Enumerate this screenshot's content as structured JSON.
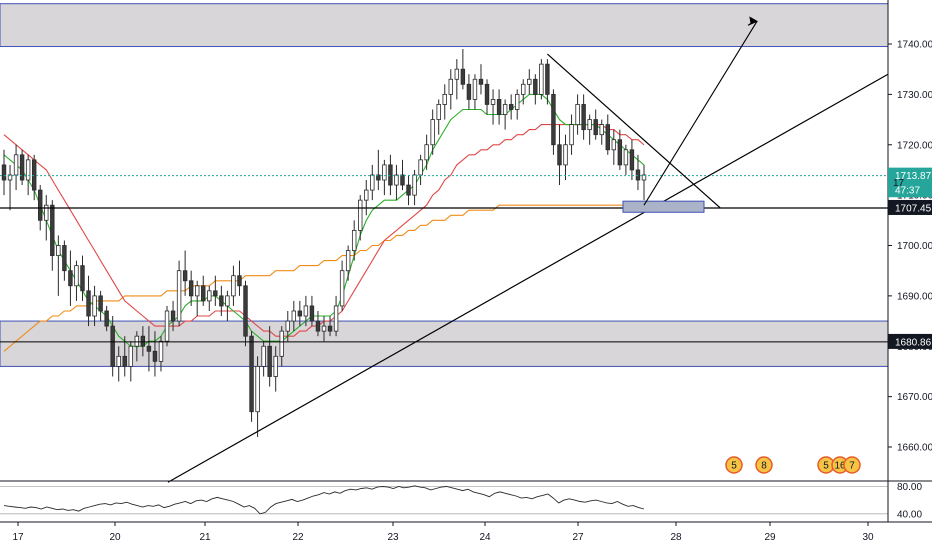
{
  "chart_data": {
    "type": "candlestick",
    "title": "",
    "price_axis": {
      "range": [
        1652,
        1748
      ],
      "ticks": [
        "1740.00",
        "1730.00",
        "1720.00",
        "1710.00",
        "1700.00",
        "1690.00",
        "1680.00",
        "1670.00",
        "1660.00"
      ]
    },
    "time_axis": {
      "ticks": [
        "17",
        "20",
        "21",
        "22",
        "23",
        "24",
        "27",
        "28",
        "29",
        "30"
      ]
    },
    "price_labels": {
      "last_price": "1713.87",
      "countdown": "47:37",
      "partial_label": "17",
      "support_line": "1707.45",
      "zone_mid": "1680.86"
    },
    "resistance_zone": [
      1739.5,
      1748
    ],
    "support_zone": [
      1676,
      1685
    ],
    "rsi": {
      "ticks": [
        "80.00",
        "40.00"
      ],
      "levels": [
        80,
        40
      ],
      "values": [
        52,
        51,
        50,
        49,
        48,
        50,
        49,
        47,
        50,
        48,
        46,
        47,
        45,
        46,
        44,
        48,
        50,
        52,
        54,
        55,
        53,
        56,
        55,
        57,
        54,
        52,
        50,
        52,
        51,
        53,
        49,
        51,
        54,
        56,
        58,
        55,
        59,
        60,
        58,
        62,
        64,
        62,
        60,
        58,
        54,
        50,
        52,
        48,
        40,
        42,
        50,
        55,
        57,
        59,
        61,
        58,
        60,
        63,
        66,
        68,
        71,
        69,
        72,
        70,
        74,
        76,
        75,
        77,
        78,
        76,
        79,
        80,
        79,
        77,
        80,
        78,
        79,
        81,
        79,
        78,
        75,
        77,
        79,
        80,
        78,
        76,
        74,
        76,
        72,
        70,
        68,
        65,
        70,
        72,
        70,
        68,
        66,
        63,
        64,
        62,
        65,
        67,
        69,
        63,
        56,
        60,
        62,
        60,
        58,
        57,
        59,
        60,
        58,
        56,
        55,
        58,
        54,
        51,
        52,
        49,
        47
      ]
    },
    "candles": [
      [
        1716,
        1719,
        1710,
        1713
      ],
      [
        1713,
        1716,
        1707,
        1714
      ],
      [
        1714,
        1720,
        1711,
        1718
      ],
      [
        1718,
        1719,
        1712,
        1713
      ],
      [
        1713,
        1718,
        1710,
        1717
      ],
      [
        1717,
        1718,
        1709,
        1711
      ],
      [
        1711,
        1712,
        1703,
        1705
      ],
      [
        1705,
        1710,
        1701,
        1708
      ],
      [
        1708,
        1709,
        1695,
        1698
      ],
      [
        1698,
        1702,
        1690,
        1700
      ],
      [
        1700,
        1701,
        1693,
        1695
      ],
      [
        1695,
        1699,
        1688,
        1692
      ],
      [
        1692,
        1697,
        1689,
        1696
      ],
      [
        1696,
        1698,
        1689,
        1691
      ],
      [
        1691,
        1694,
        1684,
        1686
      ],
      [
        1686,
        1692,
        1684,
        1690
      ],
      [
        1690,
        1691,
        1685,
        1687
      ],
      [
        1687,
        1688,
        1683,
        1684
      ],
      [
        1684,
        1686,
        1674,
        1676
      ],
      [
        1676,
        1680,
        1673,
        1678
      ],
      [
        1678,
        1682,
        1674,
        1676
      ],
      [
        1676,
        1681,
        1673,
        1680
      ],
      [
        1680,
        1683,
        1677,
        1682
      ],
      [
        1682,
        1684,
        1678,
        1680
      ],
      [
        1680,
        1684,
        1675,
        1679
      ],
      [
        1679,
        1683,
        1674,
        1677
      ],
      [
        1677,
        1682,
        1675,
        1681
      ],
      [
        1681,
        1688,
        1680,
        1687
      ],
      [
        1687,
        1689,
        1683,
        1685
      ],
      [
        1685,
        1697,
        1684,
        1695
      ],
      [
        1695,
        1699,
        1690,
        1693
      ],
      [
        1693,
        1695,
        1688,
        1690
      ],
      [
        1690,
        1693,
        1686,
        1692
      ],
      [
        1692,
        1694,
        1688,
        1689
      ],
      [
        1689,
        1692,
        1687,
        1691
      ],
      [
        1691,
        1694,
        1688,
        1690
      ],
      [
        1690,
        1692,
        1686,
        1688
      ],
      [
        1688,
        1691,
        1685,
        1690
      ],
      [
        1690,
        1696,
        1688,
        1694
      ],
      [
        1694,
        1697,
        1690,
        1692
      ],
      [
        1692,
        1693,
        1680,
        1682
      ],
      [
        1682,
        1683,
        1665,
        1667
      ],
      [
        1667,
        1678,
        1662,
        1676
      ],
      [
        1676,
        1681,
        1674,
        1680
      ],
      [
        1680,
        1684,
        1672,
        1674
      ],
      [
        1674,
        1680,
        1671,
        1678
      ],
      [
        1678,
        1684,
        1676,
        1683
      ],
      [
        1683,
        1687,
        1681,
        1685
      ],
      [
        1685,
        1689,
        1683,
        1687
      ],
      [
        1687,
        1689,
        1684,
        1686
      ],
      [
        1686,
        1690,
        1684,
        1688
      ],
      [
        1688,
        1690,
        1684,
        1685
      ],
      [
        1685,
        1687,
        1682,
        1683
      ],
      [
        1683,
        1686,
        1681,
        1684
      ],
      [
        1684,
        1686,
        1682,
        1683
      ],
      [
        1683,
        1690,
        1682,
        1688
      ],
      [
        1688,
        1697,
        1687,
        1695
      ],
      [
        1695,
        1700,
        1693,
        1699
      ],
      [
        1699,
        1705,
        1697,
        1703
      ],
      [
        1703,
        1710,
        1701,
        1709
      ],
      [
        1709,
        1713,
        1706,
        1711
      ],
      [
        1711,
        1716,
        1709,
        1714
      ],
      [
        1714,
        1719,
        1711,
        1713
      ],
      [
        1713,
        1717,
        1710,
        1716
      ],
      [
        1716,
        1718,
        1710,
        1712
      ],
      [
        1712,
        1716,
        1709,
        1714
      ],
      [
        1714,
        1717,
        1711,
        1712
      ],
      [
        1712,
        1714,
        1708,
        1710
      ],
      [
        1710,
        1715,
        1708,
        1714
      ],
      [
        1714,
        1718,
        1712,
        1717
      ],
      [
        1717,
        1722,
        1715,
        1720
      ],
      [
        1720,
        1727,
        1718,
        1725
      ],
      [
        1725,
        1729,
        1722,
        1728
      ],
      [
        1728,
        1732,
        1725,
        1730
      ],
      [
        1730,
        1735,
        1727,
        1733
      ],
      [
        1733,
        1737,
        1729,
        1735
      ],
      [
        1735,
        1739,
        1731,
        1732
      ],
      [
        1732,
        1734,
        1727,
        1729
      ],
      [
        1729,
        1734,
        1727,
        1733
      ],
      [
        1733,
        1736,
        1730,
        1732
      ],
      [
        1732,
        1733,
        1726,
        1728
      ],
      [
        1728,
        1731,
        1724,
        1729
      ],
      [
        1729,
        1731,
        1724,
        1726
      ],
      [
        1726,
        1729,
        1723,
        1728
      ],
      [
        1728,
        1730,
        1725,
        1727
      ],
      [
        1727,
        1731,
        1725,
        1730
      ],
      [
        1730,
        1733,
        1728,
        1732
      ],
      [
        1732,
        1735,
        1730,
        1733
      ],
      [
        1733,
        1734,
        1728,
        1730
      ],
      [
        1730,
        1737,
        1729,
        1736
      ],
      [
        1736,
        1737,
        1728,
        1730
      ],
      [
        1730,
        1731,
        1718,
        1720
      ],
      [
        1720,
        1724,
        1712,
        1716
      ],
      [
        1716,
        1722,
        1713,
        1720
      ],
      [
        1720,
        1726,
        1718,
        1724
      ],
      [
        1724,
        1730,
        1722,
        1728
      ],
      [
        1728,
        1730,
        1721,
        1723
      ],
      [
        1723,
        1726,
        1720,
        1725
      ],
      [
        1725,
        1727,
        1721,
        1722
      ],
      [
        1722,
        1725,
        1720,
        1724
      ],
      [
        1724,
        1726,
        1718,
        1719
      ],
      [
        1719,
        1723,
        1716,
        1721
      ],
      [
        1721,
        1723,
        1715,
        1716
      ],
      [
        1716,
        1720,
        1714,
        1719
      ],
      [
        1719,
        1721,
        1713,
        1715
      ],
      [
        1715,
        1718,
        1711,
        1713
      ],
      [
        1713,
        1716,
        1709,
        1714
      ]
    ],
    "ma_green": [
      1718,
      1717,
      1716,
      1715,
      1713,
      1711,
      1708,
      1705,
      1702,
      1699,
      1697,
      1695,
      1693,
      1691,
      1689,
      1688,
      1687,
      1686,
      1684,
      1682,
      1681,
      1680,
      1680,
      1680,
      1681,
      1681,
      1682,
      1684,
      1685,
      1686,
      1688,
      1689,
      1689,
      1689,
      1690,
      1690,
      1689,
      1688,
      1687,
      1686,
      1685,
      1683,
      1682,
      1681,
      1681,
      1681,
      1681,
      1682,
      1683,
      1684,
      1685,
      1686,
      1686,
      1686,
      1686,
      1687,
      1690,
      1694,
      1698,
      1702,
      1705,
      1707,
      1708,
      1709,
      1709,
      1709,
      1710,
      1711,
      1712,
      1714,
      1716,
      1719,
      1721,
      1723,
      1725,
      1726,
      1727,
      1727,
      1727,
      1727,
      1726,
      1726,
      1726,
      1726,
      1727,
      1728,
      1729,
      1730,
      1730,
      1730,
      1729,
      1727,
      1725,
      1724,
      1724,
      1724,
      1724,
      1724,
      1724,
      1723,
      1722,
      1721,
      1720,
      1719,
      1718,
      1717,
      1716
    ],
    "ma_red": [
      1722,
      1721,
      1720,
      1719,
      1718,
      1717,
      1716,
      1715,
      1713,
      1711,
      1709,
      1707,
      1705,
      1703,
      1701,
      1699,
      1697,
      1695,
      1693,
      1691,
      1689,
      1688,
      1687,
      1686,
      1685,
      1684,
      1684,
      1684,
      1684,
      1684,
      1685,
      1685,
      1686,
      1686,
      1686,
      1687,
      1687,
      1687,
      1687,
      1687,
      1686,
      1685,
      1684,
      1683,
      1683,
      1682,
      1682,
      1682,
      1682,
      1683,
      1683,
      1684,
      1684,
      1685,
      1685,
      1686,
      1687,
      1689,
      1691,
      1693,
      1695,
      1697,
      1699,
      1701,
      1702,
      1703,
      1704,
      1705,
      1706,
      1707,
      1708,
      1710,
      1711,
      1713,
      1714,
      1716,
      1717,
      1718,
      1718,
      1719,
      1719,
      1720,
      1720,
      1721,
      1721,
      1722,
      1722,
      1723,
      1723,
      1724,
      1724,
      1724,
      1724,
      1724,
      1724,
      1724,
      1724,
      1724,
      1724,
      1724,
      1723,
      1723,
      1722,
      1722,
      1721,
      1721,
      1720
    ],
    "ma_orange": [
      1679,
      1680,
      1681,
      1682,
      1683,
      1684,
      1685,
      1685,
      1686,
      1686,
      1687,
      1687,
      1688,
      1688,
      1688,
      1689,
      1689,
      1689,
      1689,
      1689,
      1690,
      1690,
      1690,
      1690,
      1690,
      1690,
      1690,
      1691,
      1691,
      1691,
      1691,
      1692,
      1692,
      1692,
      1692,
      1693,
      1693,
      1693,
      1693,
      1693,
      1694,
      1694,
      1694,
      1694,
      1694,
      1695,
      1695,
      1695,
      1695,
      1696,
      1696,
      1696,
      1696,
      1697,
      1697,
      1697,
      1698,
      1698,
      1698,
      1699,
      1699,
      1700,
      1700,
      1701,
      1701,
      1702,
      1702,
      1703,
      1703,
      1704,
      1704,
      1705,
      1705,
      1705,
      1706,
      1706,
      1706,
      1707,
      1707,
      1707,
      1707,
      1707,
      1708,
      1708,
      1708,
      1708,
      1708,
      1708,
      1708,
      1708,
      1708,
      1708,
      1708,
      1708,
      1708,
      1708,
      1708,
      1708,
      1708,
      1708,
      1708,
      1708,
      1708,
      1708,
      1708,
      1708,
      1708
    ],
    "event_badges": [
      "5",
      "8",
      "5",
      "16",
      "7"
    ],
    "colors": {
      "up": "#26a69a",
      "down": "#ef5350",
      "candle_body": "#3c3c3c",
      "zone_fill": "#d8d6d9",
      "zone_border": "#3f51b5",
      "ma_green": "#2bb02b",
      "ma_red": "#e04848",
      "ma_orange": "#f08c1a",
      "last_price_line": "#26a69a",
      "axis_label_bg": "#131722"
    }
  }
}
